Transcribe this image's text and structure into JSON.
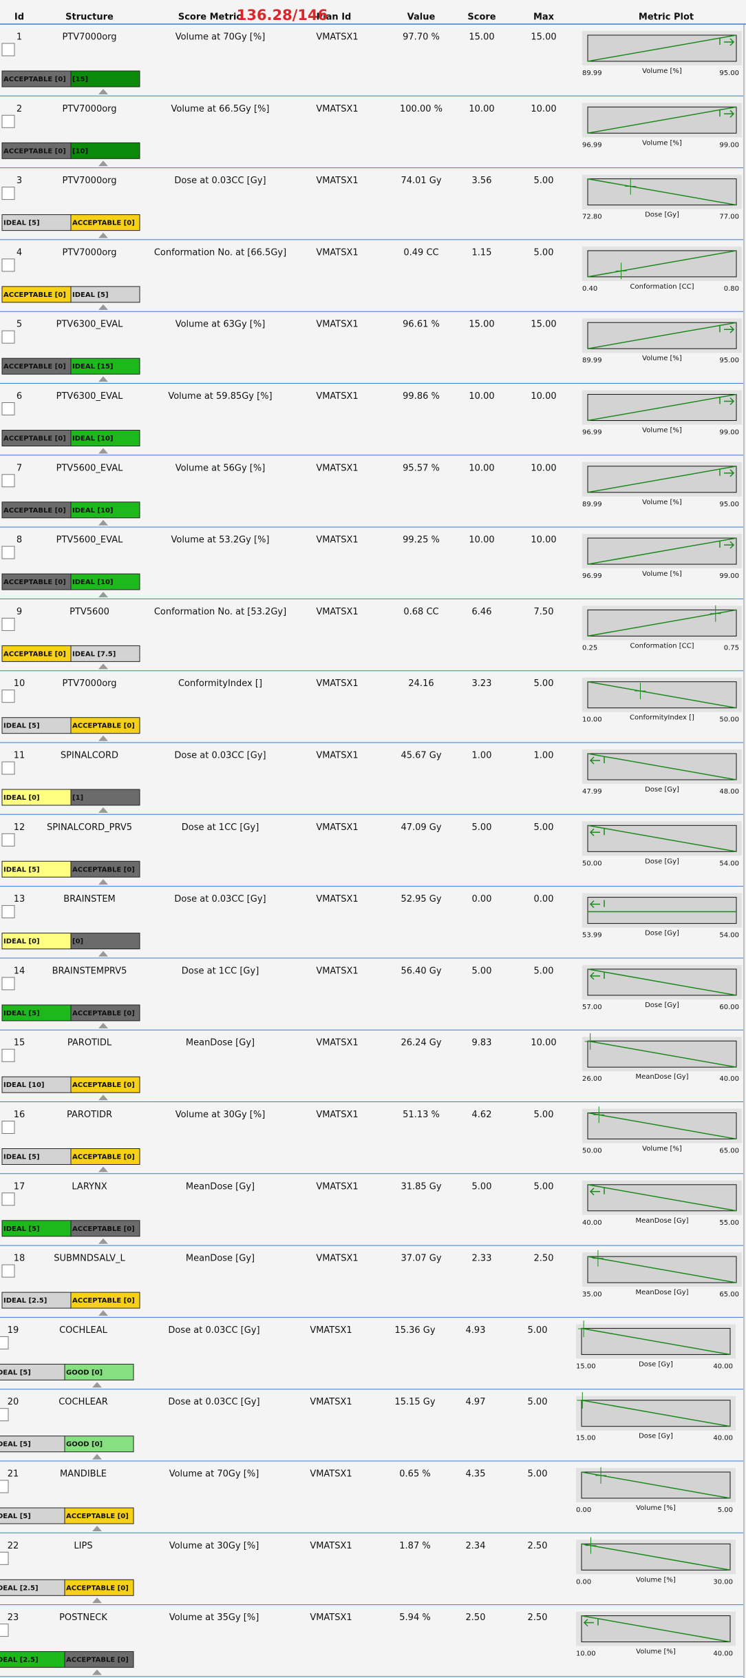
{
  "header": {
    "columns": [
      "Id",
      "Structure",
      "Score Metric",
      "Plan Id",
      "Value",
      "Score",
      "Max",
      "Metric Plot"
    ],
    "total_score": "136.28/146"
  },
  "rows": [
    {
      "id": "1",
      "structure": "PTV7000org",
      "metric": "Volume at 70Gy [%]",
      "plan": "VMATSX1",
      "value": "97.70 %",
      "score": "15.00",
      "max": "15.00",
      "segments": [
        {
          "label": "ACCEPTABLE [0]",
          "color": "#6b6b6b"
        },
        {
          "label": "[15]",
          "color": "#0b8a0b"
        }
      ],
      "plot": {
        "min": "89.99",
        "axis": "Volume [%]",
        "max": "95.00",
        "trend": "up"
      }
    },
    {
      "id": "2",
      "structure": "PTV7000org",
      "metric": "Volume at 66.5Gy [%]",
      "plan": "VMATSX1",
      "value": "100.00 %",
      "score": "10.00",
      "max": "10.00",
      "segments": [
        {
          "label": "ACCEPTABLE [0]",
          "color": "#6b6b6b"
        },
        {
          "label": "[10]",
          "color": "#0b8a0b"
        }
      ],
      "plot": {
        "min": "96.99",
        "axis": "Volume [%]",
        "max": "99.00",
        "trend": "up"
      }
    },
    {
      "id": "3",
      "structure": "PTV7000org",
      "metric": "Dose at 0.03CC [Gy]",
      "plan": "VMATSX1",
      "value": "74.01 Gy",
      "score": "3.56",
      "max": "5.00",
      "segments": [
        {
          "label": "IDEAL [5]",
          "color": "#d3d3d3"
        },
        {
          "label": "ACCEPTABLE [0]",
          "color": "#f7d117"
        }
      ],
      "plot": {
        "min": "72.80",
        "axis": "Dose [Gy]",
        "max": "77.00",
        "trend": "down"
      }
    },
    {
      "id": "4",
      "structure": "PTV7000org",
      "metric": "Conformation No. at [66.5Gy]",
      "plan": "VMATSX1",
      "value": "0.49 CC",
      "score": "1.15",
      "max": "5.00",
      "segments": [
        {
          "label": "ACCEPTABLE [0]",
          "color": "#f7d117"
        },
        {
          "label": "IDEAL [5]",
          "color": "#d3d3d3"
        }
      ],
      "plot": {
        "min": "0.40",
        "axis": "Conformation [CC]",
        "max": "0.80",
        "trend": "up"
      }
    },
    {
      "id": "5",
      "structure": "PTV6300_EVAL",
      "metric": "Volume at 63Gy [%]",
      "plan": "VMATSX1",
      "value": "96.61 %",
      "score": "15.00",
      "max": "15.00",
      "segments": [
        {
          "label": "ACCEPTABLE [0]",
          "color": "#6b6b6b"
        },
        {
          "label": "IDEAL [15]",
          "color": "#1cb81c"
        }
      ],
      "plot": {
        "min": "89.99",
        "axis": "Volume [%]",
        "max": "95.00",
        "trend": "up"
      }
    },
    {
      "id": "6",
      "structure": "PTV6300_EVAL",
      "metric": "Volume at 59.85Gy [%]",
      "plan": "VMATSX1",
      "value": "99.86 %",
      "score": "10.00",
      "max": "10.00",
      "segments": [
        {
          "label": "ACCEPTABLE [0]",
          "color": "#6b6b6b"
        },
        {
          "label": "IDEAL [10]",
          "color": "#1cb81c"
        }
      ],
      "plot": {
        "min": "96.99",
        "axis": "Volume [%]",
        "max": "99.00",
        "trend": "up"
      }
    },
    {
      "id": "7",
      "structure": "PTV5600_EVAL",
      "metric": "Volume at 56Gy [%]",
      "plan": "VMATSX1",
      "value": "95.57 %",
      "score": "10.00",
      "max": "10.00",
      "segments": [
        {
          "label": "ACCEPTABLE [0]",
          "color": "#6b6b6b"
        },
        {
          "label": "IDEAL [10]",
          "color": "#1cb81c"
        }
      ],
      "plot": {
        "min": "89.99",
        "axis": "Volume [%]",
        "max": "95.00",
        "trend": "up"
      }
    },
    {
      "id": "8",
      "structure": "PTV5600_EVAL",
      "metric": "Volume at 53.2Gy [%]",
      "plan": "VMATSX1",
      "value": "99.25 %",
      "score": "10.00",
      "max": "10.00",
      "segments": [
        {
          "label": "ACCEPTABLE [0]",
          "color": "#6b6b6b"
        },
        {
          "label": "IDEAL [10]",
          "color": "#1cb81c"
        }
      ],
      "plot": {
        "min": "96.99",
        "axis": "Volume [%]",
        "max": "99.00",
        "trend": "up"
      }
    },
    {
      "id": "9",
      "structure": "PTV5600",
      "metric": "Conformation No. at [53.2Gy]",
      "plan": "VMATSX1",
      "value": "0.68 CC",
      "score": "6.46",
      "max": "7.50",
      "segments": [
        {
          "label": "ACCEPTABLE [0]",
          "color": "#f7d117"
        },
        {
          "label": "IDEAL [7.5]",
          "color": "#d3d3d3"
        }
      ],
      "plot": {
        "min": "0.25",
        "axis": "Conformation [CC]",
        "max": "0.75",
        "trend": "up"
      }
    },
    {
      "id": "10",
      "structure": "PTV7000org",
      "metric": "ConformityIndex []",
      "plan": "VMATSX1",
      "value": "24.16",
      "score": "3.23",
      "max": "5.00",
      "segments": [
        {
          "label": "IDEAL [5]",
          "color": "#d3d3d3"
        },
        {
          "label": "ACCEPTABLE [0]",
          "color": "#f7d117"
        }
      ],
      "plot": {
        "min": "10.00",
        "axis": "ConformityIndex []",
        "max": "50.00",
        "trend": "down"
      }
    },
    {
      "id": "11",
      "structure": "SPINALCORD",
      "metric": "Dose at 0.03CC [Gy]",
      "plan": "VMATSX1",
      "value": "45.67 Gy",
      "score": "1.00",
      "max": "1.00",
      "segments": [
        {
          "label": "IDEAL [0]",
          "color": "#ffff80"
        },
        {
          "label": "[1]",
          "color": "#6b6b6b"
        }
      ],
      "plot": {
        "min": "47.99",
        "axis": "Dose [Gy]",
        "max": "48.00",
        "trend": "down"
      }
    },
    {
      "id": "12",
      "structure": "SPINALCORD_PRV5",
      "metric": "Dose at 1CC [Gy]",
      "plan": "VMATSX1",
      "value": "47.09 Gy",
      "score": "5.00",
      "max": "5.00",
      "segments": [
        {
          "label": "IDEAL [5]",
          "color": "#ffff80"
        },
        {
          "label": "ACCEPTABLE [0]",
          "color": "#6b6b6b"
        }
      ],
      "plot": {
        "min": "50.00",
        "axis": "Dose [Gy]",
        "max": "54.00",
        "trend": "down"
      }
    },
    {
      "id": "13",
      "structure": "BRAINSTEM",
      "metric": "Dose at 0.03CC [Gy]",
      "plan": "VMATSX1",
      "value": "52.95 Gy",
      "score": "0.00",
      "max": "0.00",
      "segments": [
        {
          "label": "IDEAL [0]",
          "color": "#ffff80"
        },
        {
          "label": "[0]",
          "color": "#6b6b6b"
        }
      ],
      "plot": {
        "min": "53.99",
        "axis": "Dose [Gy]",
        "max": "54.00",
        "trend": "flat"
      }
    },
    {
      "id": "14",
      "structure": "BRAINSTEMPRV5",
      "metric": "Dose at 1CC [Gy]",
      "plan": "VMATSX1",
      "value": "56.40 Gy",
      "score": "5.00",
      "max": "5.00",
      "segments": [
        {
          "label": "IDEAL [5]",
          "color": "#1cb81c"
        },
        {
          "label": "ACCEPTABLE [0]",
          "color": "#6b6b6b"
        }
      ],
      "plot": {
        "min": "57.00",
        "axis": "Dose [Gy]",
        "max": "60.00",
        "trend": "down"
      }
    },
    {
      "id": "15",
      "structure": "PAROTIDL",
      "metric": "MeanDose [Gy]",
      "plan": "VMATSX1",
      "value": "26.24 Gy",
      "score": "9.83",
      "max": "10.00",
      "segments": [
        {
          "label": "IDEAL [10]",
          "color": "#d3d3d3"
        },
        {
          "label": "ACCEPTABLE [0]",
          "color": "#f7d117"
        }
      ],
      "plot": {
        "min": "26.00",
        "axis": "MeanDose [Gy]",
        "max": "40.00",
        "trend": "down"
      }
    },
    {
      "id": "16",
      "structure": "PAROTIDR",
      "metric": "Volume at 30Gy [%]",
      "plan": "VMATSX1",
      "value": "51.13 %",
      "score": "4.62",
      "max": "5.00",
      "segments": [
        {
          "label": "IDEAL [5]",
          "color": "#d3d3d3"
        },
        {
          "label": "ACCEPTABLE [0]",
          "color": "#f7d117"
        }
      ],
      "plot": {
        "min": "50.00",
        "axis": "Volume [%]",
        "max": "65.00",
        "trend": "down"
      }
    },
    {
      "id": "17",
      "structure": "LARYNX",
      "metric": "MeanDose [Gy]",
      "plan": "VMATSX1",
      "value": "31.85 Gy",
      "score": "5.00",
      "max": "5.00",
      "segments": [
        {
          "label": "IDEAL [5]",
          "color": "#1cb81c"
        },
        {
          "label": "ACCEPTABLE [0]",
          "color": "#6b6b6b"
        }
      ],
      "plot": {
        "min": "40.00",
        "axis": "MeanDose [Gy]",
        "max": "55.00",
        "trend": "down"
      }
    },
    {
      "id": "18",
      "structure": "SUBMNDSALV_L",
      "metric": "MeanDose [Gy]",
      "plan": "VMATSX1",
      "value": "37.07 Gy",
      "score": "2.33",
      "max": "2.50",
      "segments": [
        {
          "label": "IDEAL [2.5]",
          "color": "#d3d3d3"
        },
        {
          "label": "ACCEPTABLE [0]",
          "color": "#f7d117"
        }
      ],
      "plot": {
        "min": "35.00",
        "axis": "MeanDose [Gy]",
        "max": "65.00",
        "trend": "down"
      }
    },
    {
      "id": "19",
      "structure": "COCHLEAL",
      "metric": "Dose at 0.03CC [Gy]",
      "plan": "VMATSX1",
      "value": "15.36 Gy",
      "score": "4.93",
      "max": "5.00",
      "segments": [
        {
          "label": "DEAL [5]",
          "color": "#d3d3d3"
        },
        {
          "label": "GOOD [0]",
          "color": "#86e07f"
        }
      ],
      "plot": {
        "min": "15.00",
        "axis": "Dose [Gy]",
        "max": "40.00",
        "trend": "down"
      }
    },
    {
      "id": "20",
      "structure": "COCHLEAR",
      "metric": "Dose at 0.03CC [Gy]",
      "plan": "VMATSX1",
      "value": "15.15 Gy",
      "score": "4.97",
      "max": "5.00",
      "segments": [
        {
          "label": "DEAL [5]",
          "color": "#d3d3d3"
        },
        {
          "label": "GOOD [0]",
          "color": "#86e07f"
        }
      ],
      "plot": {
        "min": "15.00",
        "axis": "Dose [Gy]",
        "max": "40.00",
        "trend": "down"
      }
    },
    {
      "id": "21",
      "structure": "MANDIBLE",
      "metric": "Volume at 70Gy [%]",
      "plan": "VMATSX1",
      "value": "0.65 %",
      "score": "4.35",
      "max": "5.00",
      "segments": [
        {
          "label": "DEAL [5]",
          "color": "#d3d3d3"
        },
        {
          "label": "ACCEPTABLE [0]",
          "color": "#f7d117"
        }
      ],
      "plot": {
        "min": "0.00",
        "axis": "Volume [%]",
        "max": "5.00",
        "trend": "down"
      }
    },
    {
      "id": "22",
      "structure": "LIPS",
      "metric": "Volume at 30Gy [%]",
      "plan": "VMATSX1",
      "value": "1.87 %",
      "score": "2.34",
      "max": "2.50",
      "segments": [
        {
          "label": "DEAL [2.5]",
          "color": "#d3d3d3"
        },
        {
          "label": "ACCEPTABLE [0]",
          "color": "#f7d117"
        }
      ],
      "plot": {
        "min": "0.00",
        "axis": "Volume [%]",
        "max": "30.00",
        "trend": "down"
      }
    },
    {
      "id": "23",
      "structure": "POSTNECK",
      "metric": "Volume at 35Gy [%]",
      "plan": "VMATSX1",
      "value": "5.94 %",
      "score": "2.50",
      "max": "2.50",
      "segments": [
        {
          "label": "DEAL [2.5]",
          "color": "#1cb81c"
        },
        {
          "label": "ACCEPTABLE [0]",
          "color": "#6b6b6b"
        }
      ],
      "plot": {
        "min": "10.00",
        "axis": "Volume [%]",
        "max": "40.00",
        "trend": "down"
      }
    }
  ]
}
